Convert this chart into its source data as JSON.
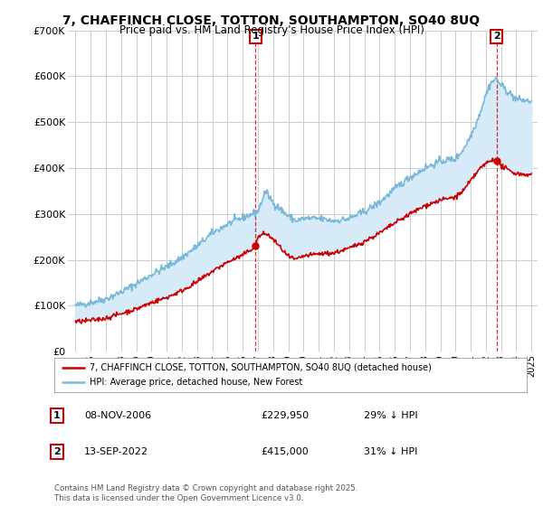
{
  "title": "7, CHAFFINCH CLOSE, TOTTON, SOUTHAMPTON, SO40 8UQ",
  "subtitle": "Price paid vs. HM Land Registry's House Price Index (HPI)",
  "red_label": "7, CHAFFINCH CLOSE, TOTTON, SOUTHAMPTON, SO40 8UQ (detached house)",
  "blue_label": "HPI: Average price, detached house, New Forest",
  "annotation1": {
    "num": "1",
    "date": "08-NOV-2006",
    "price": "£229,950",
    "note": "29% ↓ HPI"
  },
  "annotation2": {
    "num": "2",
    "date": "13-SEP-2022",
    "price": "£415,000",
    "note": "31% ↓ HPI"
  },
  "footer": "Contains HM Land Registry data © Crown copyright and database right 2025.\nThis data is licensed under the Open Government Licence v3.0.",
  "red_color": "#cc0000",
  "blue_color": "#7ab8d9",
  "fill_color": "#d6eaf8",
  "background_color": "#ffffff",
  "plot_bg_color": "#ffffff",
  "grid_color": "#cccccc",
  "ylim": [
    0,
    700000
  ],
  "yticks": [
    0,
    100000,
    200000,
    300000,
    400000,
    500000,
    600000,
    700000
  ],
  "ytick_labels": [
    "£0",
    "£100K",
    "£200K",
    "£300K",
    "£400K",
    "£500K",
    "£600K",
    "£700K"
  ],
  "marker1_x": 2006.85,
  "marker1_y": 229950,
  "marker2_x": 2022.7,
  "marker2_y": 415000,
  "vline1_x": 2006.85,
  "vline2_x": 2022.7,
  "xmin": 1995,
  "xmax": 2025
}
